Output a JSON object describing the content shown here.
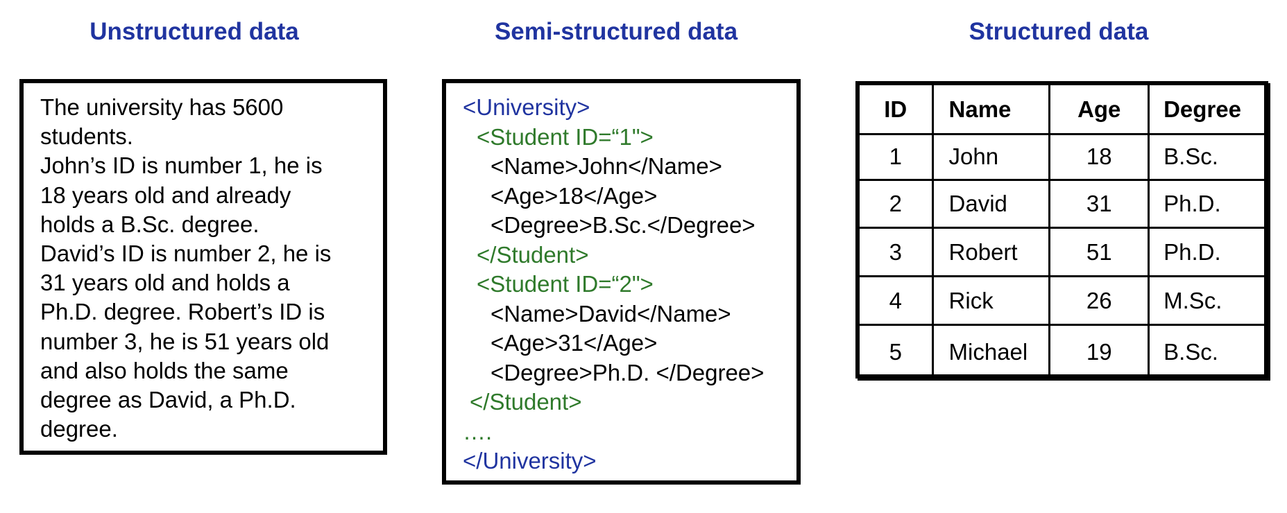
{
  "headings": {
    "unstructured": "Unstructured data",
    "semi": "Semi-structured data",
    "structured": "Structured data"
  },
  "unstructured_lines": [
    "The university has 5600",
    "students.",
    "John’s ID is number 1, he is",
    "18 years old and already",
    "holds a B.Sc. degree.",
    "David’s ID is number 2, he is",
    "31 years old and holds a",
    "Ph.D. degree. Robert’s ID is",
    "number 3, he is 51 years old",
    "and also holds the same",
    "degree as David, a Ph.D.",
    "degree."
  ],
  "xml_lines": [
    {
      "indent": 0,
      "color": "blue",
      "text": "<University>"
    },
    {
      "indent": 1,
      "color": "green",
      "text": "<Student ID=“1\">"
    },
    {
      "indent": 2,
      "color": "black",
      "text": "<Name>John</Name>"
    },
    {
      "indent": 2,
      "color": "black",
      "text": "<Age>18</Age>"
    },
    {
      "indent": 2,
      "color": "black",
      "text": "<Degree>B.Sc.</Degree>"
    },
    {
      "indent": 1,
      "color": "green",
      "text": "</Student>"
    },
    {
      "indent": 1,
      "color": "green",
      "text": "<Student ID=“2\">"
    },
    {
      "indent": 2,
      "color": "black",
      "text": "<Name>David</Name>"
    },
    {
      "indent": 2,
      "color": "black",
      "text": "<Age>31</Age>"
    },
    {
      "indent": 2,
      "color": "black",
      "text": "<Degree>Ph.D. </Degree>"
    },
    {
      "indent": 0.5,
      "color": "green",
      "text": "</Student>"
    },
    {
      "indent": 0,
      "color": "green",
      "text": "…."
    },
    {
      "indent": 0,
      "color": "blue",
      "text": "</University>"
    }
  ],
  "table": {
    "headers": [
      "ID",
      "Name",
      "Age",
      "Degree"
    ],
    "rows": [
      [
        "1",
        "John",
        "18",
        "B.Sc."
      ],
      [
        "2",
        "David",
        "31",
        "Ph.D."
      ],
      [
        "3",
        "Robert",
        "51",
        "Ph.D."
      ],
      [
        "4",
        "Rick",
        "26",
        "M.Sc."
      ],
      [
        "5",
        "Michael",
        "19",
        "B.Sc."
      ]
    ]
  },
  "colors": {
    "heading": "#2034a0",
    "xml_blue": "#2034a0",
    "xml_green": "#2f7a2b",
    "text": "#000000"
  }
}
